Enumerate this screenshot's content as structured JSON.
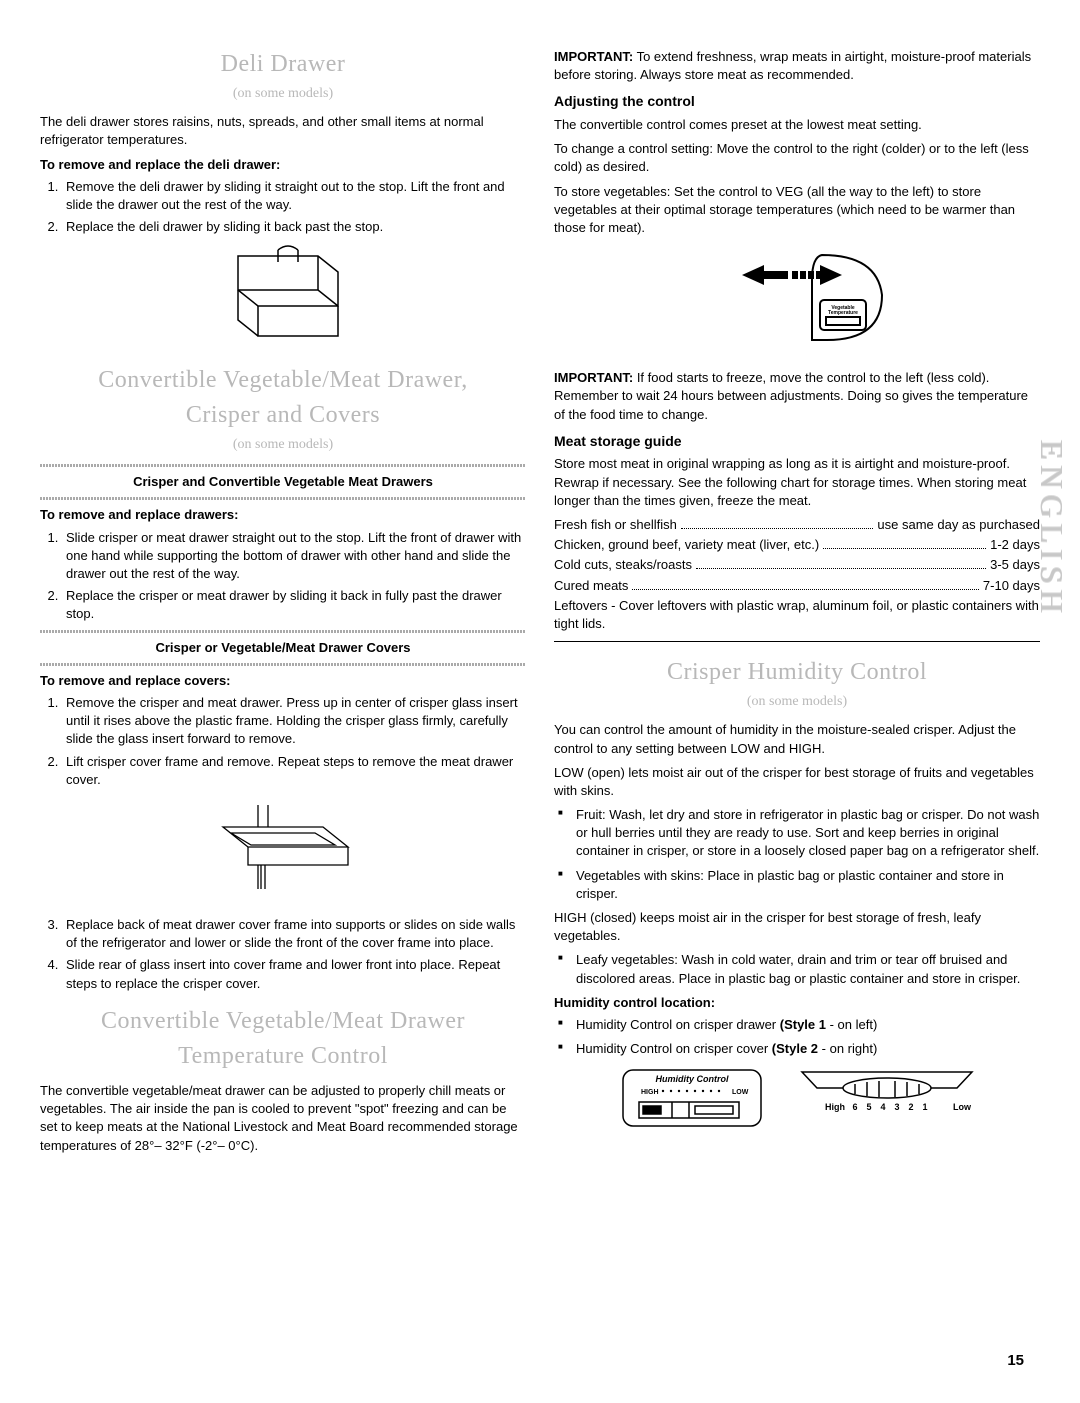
{
  "page_number": "15",
  "side_label": "ENGLISH",
  "left": {
    "s1": {
      "title": "Deli Drawer",
      "sub": "(on some models)",
      "intro": "The deli drawer stores raisins, nuts, spreads, and other small items at normal refrigerator temperatures.",
      "h_remove": "To remove and replace the deli drawer:",
      "steps": [
        "Remove the deli drawer by sliding it straight out to the stop. Lift the front and slide the drawer out the rest of the way.",
        "Replace the deli drawer by sliding it back past the stop."
      ]
    },
    "s2": {
      "title1": "Convertible Vegetable/Meat Drawer,",
      "title2": "Crisper and Covers",
      "sub": "(on some models)",
      "h_a": "Crisper and Convertible Vegetable Meat Drawers",
      "h_remove_drawers": "To remove and replace drawers:",
      "steps_drawers": [
        "Slide crisper or meat drawer straight out to the stop. Lift the front of drawer with one hand while supporting the bottom of drawer with other hand and slide the drawer out the rest of the way.",
        "Replace the crisper or meat drawer by sliding it back in fully past the drawer stop."
      ],
      "h_b": "Crisper or Vegetable/Meat Drawer Covers",
      "h_remove_covers": "To remove and replace covers:",
      "steps_covers_a": [
        "Remove the crisper and meat drawer. Press up in center of crisper glass insert until it rises above the plastic frame. Holding the crisper glass firmly, carefully slide the glass insert forward to remove.",
        "Lift crisper cover frame and remove. Repeat steps to remove the meat drawer cover."
      ],
      "steps_covers_b": [
        "Replace back of meat drawer cover frame into supports or slides on side walls of the refrigerator and lower or slide the front of the cover frame into place.",
        "Slide rear of glass insert into cover frame and lower front into place. Repeat steps to replace the crisper cover."
      ]
    },
    "s3": {
      "title1": "Convertible Vegetable/Meat Drawer",
      "title2": "Temperature Control",
      "body": "The convertible vegetable/meat drawer can be adjusted to properly chill meats or vegetables. The air inside the pan is cooled to prevent \"spot\" freezing and can be set to keep meats at the National Livestock and Meat Board recommended storage temperatures of 28°– 32°F (-2°– 0°C)."
    }
  },
  "right": {
    "important1_label": "IMPORTANT:",
    "important1": " To extend freshness, wrap meats in airtight, moisture-proof materials before storing. Always store meat as recommended.",
    "h_adjust": "Adjusting the control",
    "adjust_p1": "The convertible control comes preset at the lowest meat setting.",
    "adjust_p2": "To change a control setting: Move the control to the right (colder) or to the left (less cold) as desired.",
    "adjust_p3": "To store vegetables: Set the control to VEG (all the way to the left) to store vegetables at their optimal storage temperatures (which need to be warmer than those for meat).",
    "important2_label": "IMPORTANT:",
    "important2": " If food starts to freeze, move the control to the left (less cold). Remember to wait 24 hours between adjustments. Doing so gives the temperature of the food time to change.",
    "h_meat": "Meat storage guide",
    "meat_p": "Store most meat in original wrapping as long as it is airtight and moisture-proof. Rewrap if necessary. See the following chart for storage times. When storing meat longer than the times given, freeze the meat.",
    "storage": [
      {
        "item": "Fresh fish or shellfish",
        "time": "use same day as purchased"
      },
      {
        "item": "Chicken, ground beef, variety meat (liver, etc.)",
        "time": "1-2 days"
      },
      {
        "item": "Cold cuts, steaks/roasts",
        "time": "3-5 days"
      },
      {
        "item": "Cured meats",
        "time": "7-10 days"
      }
    ],
    "leftovers": "Leftovers - Cover leftovers with plastic wrap, aluminum foil, or plastic containers with tight lids.",
    "s_crisper": {
      "title": "Crisper Humidity Control",
      "sub": "(on some models)",
      "p1": "You can control the amount of humidity in the moisture-sealed crisper. Adjust the control to any setting between LOW and HIGH.",
      "p2": "LOW (open) lets moist air out of the crisper for best storage of fruits and vegetables with skins.",
      "bullets1": [
        "Fruit: Wash, let dry and store in refrigerator in plastic bag or crisper. Do not wash or hull berries until they are ready to use. Sort and keep berries in original container in crisper, or store in a loosely closed paper bag on a refrigerator shelf.",
        "Vegetables with skins: Place in plastic bag or plastic container and store in crisper."
      ],
      "p3": "HIGH (closed) keeps moist air in the crisper for best storage of fresh, leafy vegetables.",
      "bullets2": [
        "Leafy vegetables: Wash in cold water, drain and trim or tear off bruised and discolored areas. Place in plastic bag or plastic container and store in crisper."
      ],
      "h_loc": "Humidity control location:",
      "loc_bullets_1a": "Humidity Control on crisper drawer ",
      "loc_bullets_1b": "(Style 1",
      "loc_bullets_1c": " - on left)",
      "loc_bullets_2a": "Humidity Control on crisper cover ",
      "loc_bullets_2b": "(Style 2",
      "loc_bullets_2c": " - on right)",
      "fig1_label": "Humidity Control",
      "fig1_hi": "HIGH",
      "fig1_lo": "LOW",
      "fig2_hi": "High",
      "fig2_lo": "Low",
      "fig2_nums": [
        "6",
        "5",
        "4",
        "3",
        "2",
        "1"
      ]
    }
  },
  "colors": {
    "ghost": "#b8b8b8",
    "text": "#000000"
  }
}
